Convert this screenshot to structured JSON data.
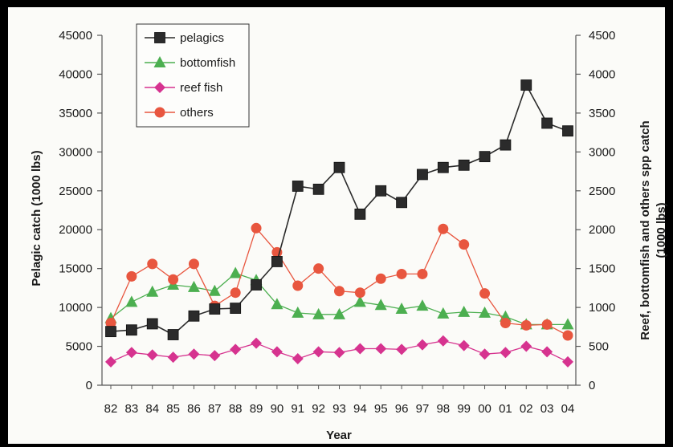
{
  "chart_data": {
    "type": "line",
    "title": "",
    "xlabel": "Year",
    "ylabel_left": "Pelagic catch (1000 lbs)",
    "ylabel_right": [
      "Reef, bottomfish and others spp catch",
      "(1000 lbs)"
    ],
    "ylim_left": [
      0,
      45000
    ],
    "ylim_right": [
      0,
      4500
    ],
    "yticks_left": [
      "0",
      "5000",
      "10000",
      "15000",
      "20000",
      "25000",
      "30000",
      "35000",
      "40000",
      "45000"
    ],
    "yticks_right": [
      "0",
      "500",
      "1000",
      "1500",
      "2000",
      "2500",
      "3000",
      "3500",
      "4000",
      "4500"
    ],
    "categories": [
      "82",
      "83",
      "84",
      "85",
      "86",
      "87",
      "88",
      "89",
      "90",
      "91",
      "92",
      "93",
      "94",
      "95",
      "96",
      "97",
      "98",
      "99",
      "00",
      "01",
      "02",
      "03",
      "04"
    ],
    "grid": false,
    "legend_position": "top-left",
    "series": [
      {
        "name": "pelagics",
        "axis": "left",
        "marker": "square",
        "color": "#2b2b2b",
        "values": [
          6900,
          7100,
          7900,
          6500,
          8900,
          9800,
          9900,
          12900,
          15900,
          25600,
          25200,
          28000,
          22000,
          25000,
          23500,
          27100,
          28000,
          28300,
          29400,
          30900,
          38600,
          33700,
          32700
        ]
      },
      {
        "name": "bottomfish",
        "axis": "right",
        "marker": "triangle",
        "color": "#4caf50",
        "values": [
          860,
          1070,
          1200,
          1290,
          1260,
          1210,
          1440,
          1350,
          1040,
          930,
          910,
          910,
          1070,
          1030,
          980,
          1020,
          920,
          940,
          930,
          880,
          780,
          780,
          780
        ]
      },
      {
        "name": "reef fish",
        "axis": "right",
        "marker": "diamond",
        "color": "#d6338f",
        "values": [
          300,
          420,
          390,
          360,
          400,
          380,
          460,
          540,
          430,
          340,
          430,
          420,
          470,
          470,
          460,
          520,
          570,
          510,
          400,
          420,
          500,
          430,
          300
        ]
      },
      {
        "name": "others",
        "axis": "right",
        "marker": "circle",
        "color": "#e8563f",
        "values": [
          800,
          1400,
          1560,
          1360,
          1560,
          1020,
          1190,
          2020,
          1710,
          1280,
          1500,
          1210,
          1190,
          1370,
          1430,
          1430,
          2010,
          1810,
          1180,
          800,
          770,
          780,
          640
        ]
      }
    ]
  }
}
